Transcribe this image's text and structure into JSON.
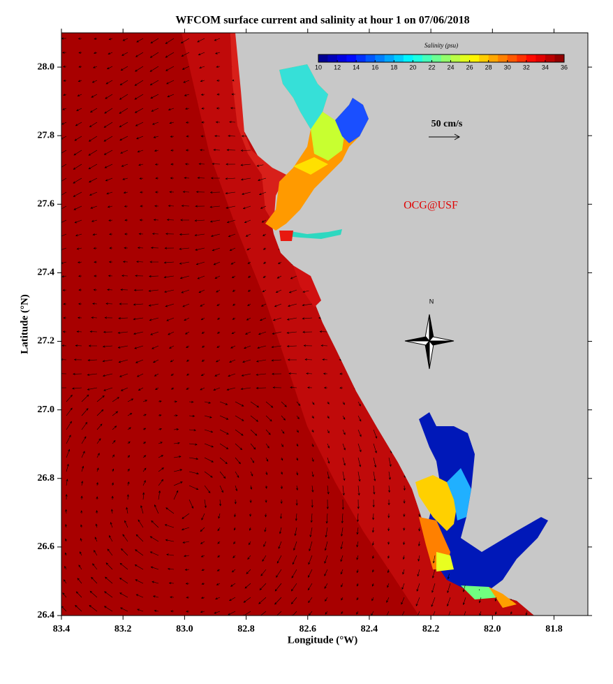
{
  "title": "WFCOM surface current and salinity at hour 1 on 07/06/2018",
  "x_axis_label": "Longitude (°W)",
  "y_axis_label": "Latitude (°N)",
  "xlim": [
    83.4,
    81.69
  ],
  "ylim": [
    26.4,
    28.1
  ],
  "xticks": [
    83.4,
    83.2,
    {
      "value": 83.0,
      "label": "83.0"
    },
    82.8,
    82.6,
    82.4,
    82.2,
    {
      "value": 82.0,
      "label": "82.0"
    },
    81.8
  ],
  "yticks": [
    {
      "value": 26.4,
      "label": "26.4"
    },
    26.6,
    26.8,
    {
      "value": 27.0,
      "label": "27.0"
    },
    27.2,
    27.4,
    27.6,
    27.8,
    {
      "value": 28.0,
      "label": "28.0"
    }
  ],
  "colorbar": {
    "label": "Salinity (psu)",
    "clim": [
      10,
      36
    ],
    "ticks": [
      10,
      12,
      14,
      16,
      18,
      20,
      22,
      24,
      26,
      28,
      30,
      32,
      34,
      36
    ]
  },
  "scale_label": "50 cm/s",
  "credit": "OCG@USF",
  "north_label": "N"
}
